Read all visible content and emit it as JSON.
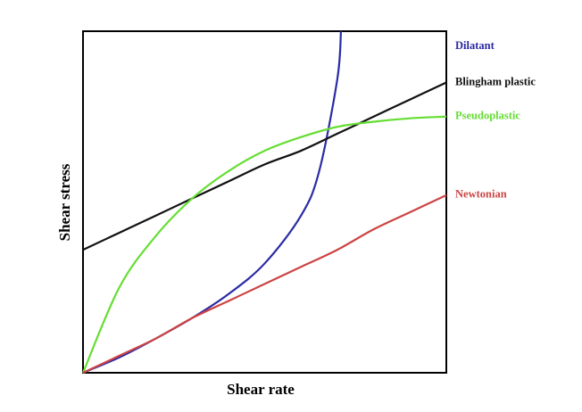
{
  "chart_data": {
    "type": "line",
    "x_label": "Shear rate",
    "y_label": "Shear stress",
    "xlim": [
      0,
      10
    ],
    "ylim": [
      0,
      10
    ],
    "x": [
      0,
      1,
      2,
      3,
      4,
      5,
      6,
      7,
      8,
      9,
      10
    ],
    "series": [
      {
        "name": "Dilatant",
        "color": "#2b2ba6",
        "x": [
          0,
          1,
          2,
          3,
          4,
          5,
          6,
          6.5,
          7,
          7.1
        ],
        "values": [
          0,
          0.45,
          1.0,
          1.6,
          2.3,
          3.2,
          4.6,
          5.9,
          8.6,
          10
        ]
      },
      {
        "name": "Blingham plastic",
        "color": "#111111",
        "values": [
          3.6,
          4.1,
          4.6,
          5.1,
          5.6,
          6.1,
          6.5,
          7.0,
          7.5,
          8.0,
          8.5
        ]
      },
      {
        "name": "Pseudoplastic",
        "color": "#66dd33",
        "values": [
          0,
          2.5,
          4.0,
          5.1,
          5.9,
          6.5,
          6.9,
          7.2,
          7.35,
          7.45,
          7.5
        ]
      },
      {
        "name": "Newtonian",
        "color": "#cc4444",
        "values": [
          0,
          0.5,
          1.0,
          1.6,
          2.1,
          2.6,
          3.1,
          3.6,
          4.2,
          4.7,
          5.2
        ]
      }
    ]
  }
}
